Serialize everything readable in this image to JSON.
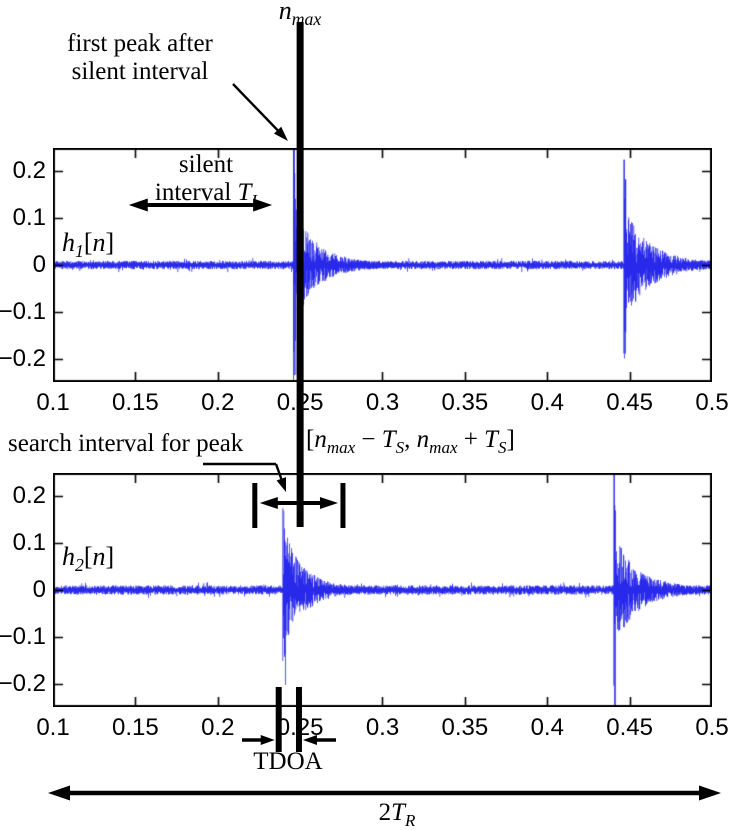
{
  "figure": {
    "background": "#ffffff",
    "signal_color": "#0d0de8",
    "axis_color": "#000000",
    "annotation_color": "#000000"
  },
  "chart_data": [
    {
      "type": "line",
      "series_name": "h1[n]",
      "series_label_segments": [
        {
          "t": "h",
          "sub": "1",
          "it": true
        },
        {
          "t": "[",
          "it": false
        },
        {
          "t": "n",
          "it": true
        },
        {
          "t": "]",
          "it": false
        }
      ],
      "x": {
        "min": 0.1,
        "max": 0.5,
        "ticks": [
          0.1,
          0.15,
          0.2,
          0.25,
          0.3,
          0.35,
          0.4,
          0.45,
          0.5
        ],
        "tick_labels": [
          "0.1",
          "0.15",
          "0.2",
          "0.25",
          "0.3",
          "0.35",
          "0.4",
          "0.45",
          "0.5"
        ]
      },
      "y": {
        "min": -0.25,
        "max": 0.25,
        "ticks": [
          0.2,
          0.1,
          0,
          -0.1,
          -0.2
        ],
        "tick_labels": [
          "0.2",
          "0.1",
          "0",
          "−0.1",
          "−0.2"
        ]
      },
      "grid": false,
      "noise_amplitude": 0.009,
      "peaks": [
        {
          "t": 0.2455,
          "up": 0.26,
          "down": 0.26,
          "tail": 0.115,
          "tau": 0.011,
          "attack": 0.002
        },
        {
          "t": 0.4462,
          "up": 0.225,
          "down": 0.2,
          "tail": 0.105,
          "tau": 0.013,
          "attack": 0.0015
        }
      ],
      "seed": 42
    },
    {
      "type": "line",
      "series_name": "h2[n]",
      "series_label_segments": [
        {
          "t": "h",
          "sub": "2",
          "it": true
        },
        {
          "t": "[",
          "it": false
        },
        {
          "t": "n",
          "it": true
        },
        {
          "t": "]",
          "it": false
        }
      ],
      "x": {
        "min": 0.1,
        "max": 0.5,
        "ticks": [
          0.1,
          0.15,
          0.2,
          0.25,
          0.3,
          0.35,
          0.4,
          0.45,
          0.5
        ],
        "tick_labels": [
          "0.1",
          "0.15",
          "0.2",
          "0.25",
          "0.3",
          "0.35",
          "0.4",
          "0.45",
          "0.5"
        ]
      },
      "y": {
        "min": -0.25,
        "max": 0.25,
        "ticks": [
          0.2,
          0.1,
          0,
          -0.1,
          -0.2
        ],
        "tick_labels": [
          "0.2",
          "0.1",
          "0",
          "−0.1",
          "−0.2"
        ]
      },
      "grid": false,
      "noise_amplitude": 0.01,
      "peaks": [
        {
          "t": 0.239,
          "up": 0.175,
          "down": 0.215,
          "tail": 0.12,
          "tau": 0.01,
          "attack": 0.002
        },
        {
          "t": 0.44,
          "up": 0.28,
          "down": 0.28,
          "tail": 0.105,
          "tau": 0.012,
          "attack": 0.0015
        }
      ],
      "seed": 1337
    }
  ],
  "annotations": {
    "nmax_label_segments": [
      {
        "t": "n",
        "sub": "max",
        "it": true
      }
    ],
    "nmax_position": 0.25,
    "first_peak_note_line1": "first peak after",
    "first_peak_note_line2": "silent interval",
    "silent_note_line1": "silent",
    "silent_note_line2_segments": [
      {
        "t": "interval ",
        "it": false
      },
      {
        "t": "T",
        "sub": "I",
        "it": true
      }
    ],
    "silent_interval_range": [
      0.146,
      0.233
    ],
    "search_note": "search interval for peak",
    "search_formula_segments": [
      {
        "t": "[",
        "it": false
      },
      {
        "t": "n",
        "sub": "max",
        "it": true
      },
      {
        "t": " − ",
        "it": false
      },
      {
        "t": "T",
        "sub": "S",
        "it": true
      },
      {
        "t": ", ",
        "it": false
      },
      {
        "t": "n",
        "sub": "max",
        "it": true
      },
      {
        "t": " + ",
        "it": false
      },
      {
        "t": "T",
        "sub": "S",
        "it": true
      },
      {
        "t": "]",
        "it": false
      }
    ],
    "search_interval_range": [
      0.2225,
      0.276
    ],
    "tdoa_label": "TDOA",
    "tdoa_range": [
      0.237,
      0.2493
    ],
    "tr_label_segments": [
      {
        "t": "2",
        "it": false
      },
      {
        "t": "T",
        "sub": "R",
        "it": true
      }
    ]
  }
}
